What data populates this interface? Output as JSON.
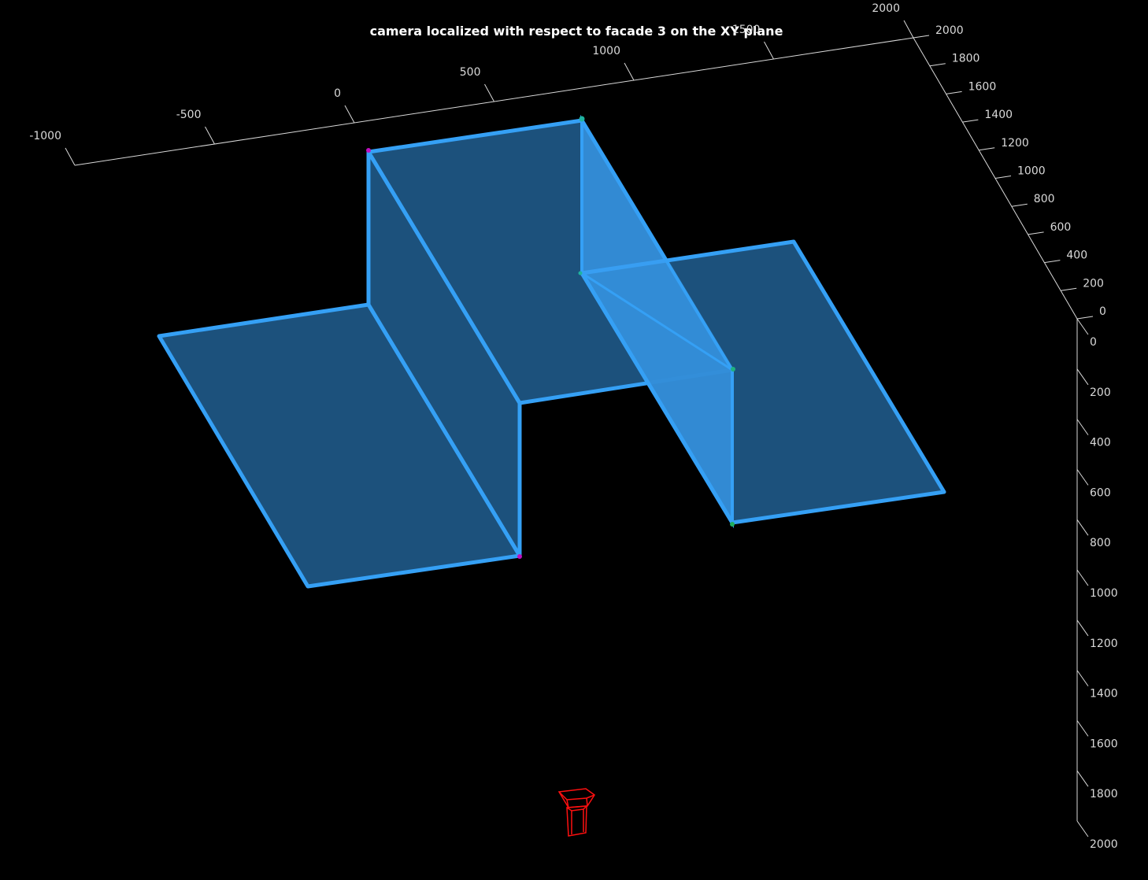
{
  "chart_data": {
    "type": "3d-surface",
    "title": "camera localized with respect to facade 3 on the XY plane",
    "x_axis": {
      "ticks": [
        -1000,
        -500,
        0,
        500,
        1000,
        1500,
        2000
      ],
      "tick_labels": [
        "-1000",
        "-500",
        "0",
        "500",
        "1000",
        "1500",
        "2000"
      ]
    },
    "y_axis": {
      "ticks": [
        0,
        200,
        400,
        600,
        800,
        1000,
        1200,
        1400,
        1600,
        1800,
        2000
      ],
      "tick_labels": [
        "0",
        "200",
        "400",
        "600",
        "800",
        "1000",
        "1200",
        "1400",
        "1600",
        "1800",
        "2000"
      ]
    },
    "z_axis": {
      "ticks": [
        0,
        200,
        400,
        600,
        800,
        1000,
        1200,
        1400,
        1600,
        1800,
        2000
      ],
      "tick_labels": [
        "0",
        "200",
        "400",
        "600",
        "800",
        "1000",
        "1200",
        "1400",
        "1600",
        "1800",
        "2000"
      ]
    },
    "grid": false,
    "colors": {
      "background": "#000000",
      "facade_fill": "#1f5a8a",
      "facade_edge": "#35a0f5",
      "camera": "#ff1010",
      "axes": "#d9d9d9"
    }
  }
}
